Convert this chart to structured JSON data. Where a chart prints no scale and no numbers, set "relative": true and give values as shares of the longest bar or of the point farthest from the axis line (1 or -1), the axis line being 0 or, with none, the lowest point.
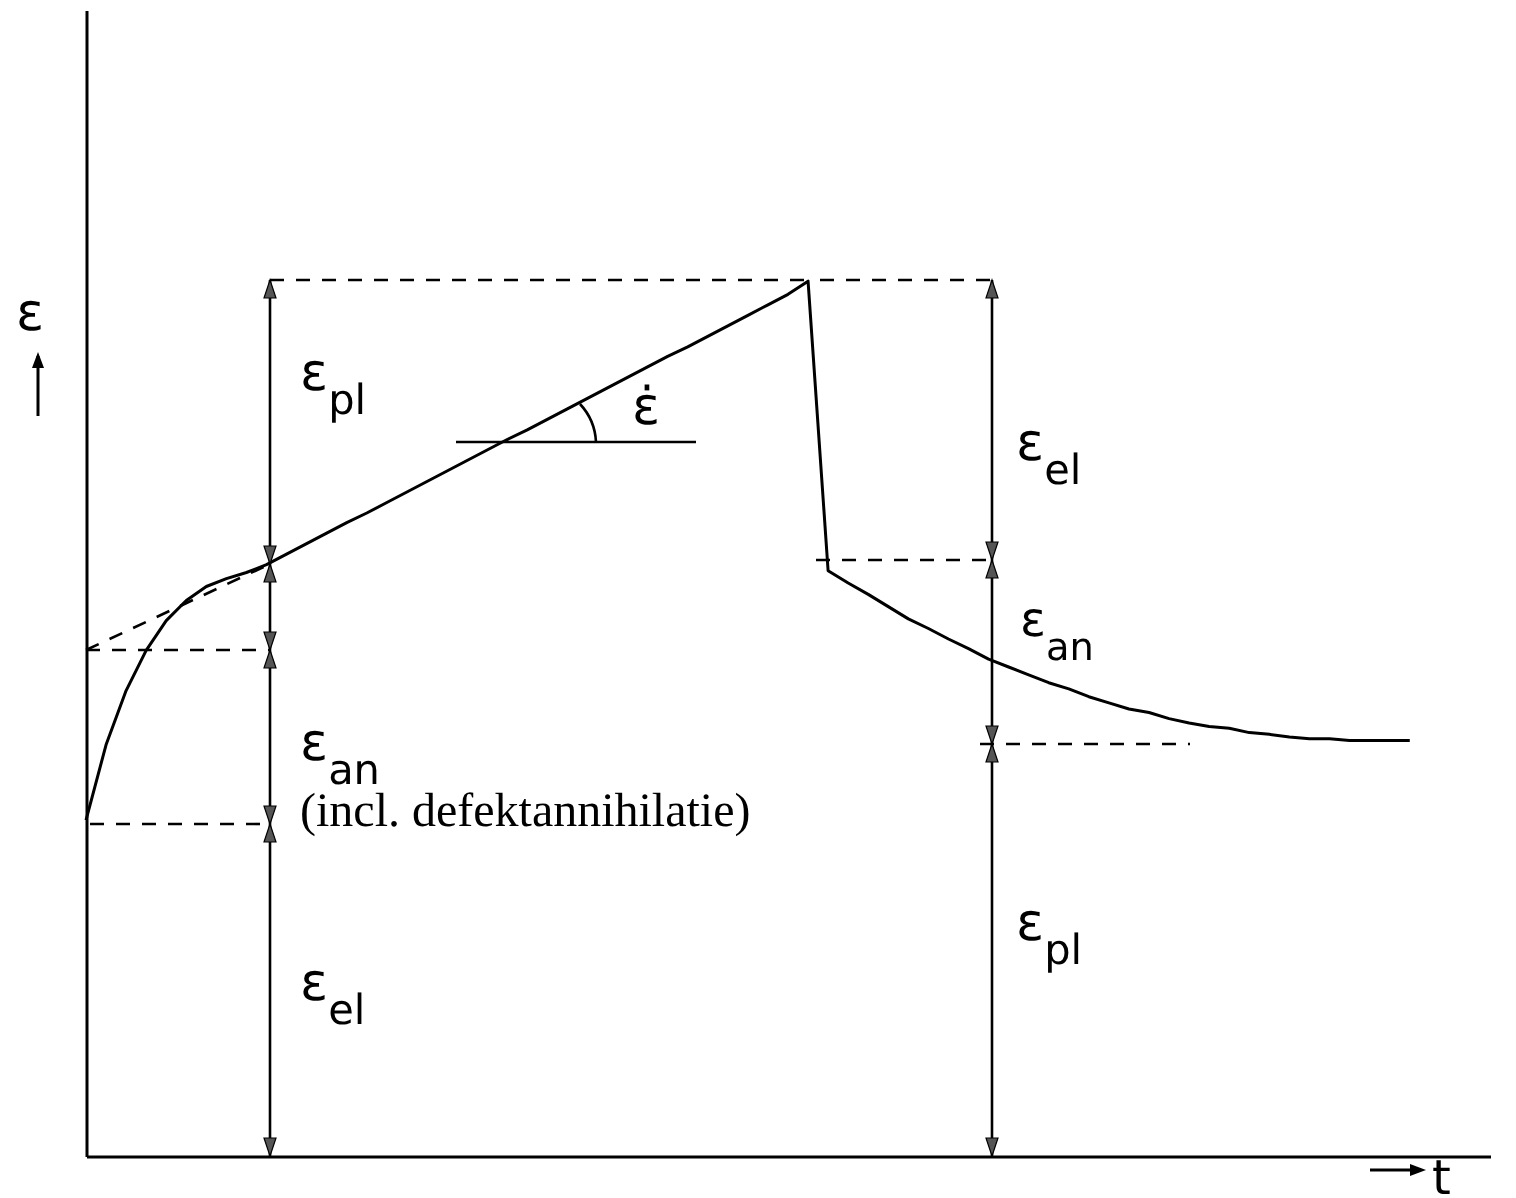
{
  "chart_data": {
    "type": "line",
    "relative": true,
    "xlabel": "t",
    "ylabel": "ε",
    "marker": "none",
    "line_style": "solid",
    "grid": false,
    "categories": [
      null,
      null,
      null,
      null,
      null,
      null,
      null,
      null,
      null,
      null,
      null,
      null,
      null,
      null,
      null,
      null,
      null,
      null,
      null,
      null,
      null,
      null,
      null,
      null,
      null,
      null,
      null,
      null,
      null,
      null,
      null,
      null,
      null,
      null,
      null,
      null,
      null,
      null,
      null,
      null,
      null,
      null,
      null,
      null,
      null,
      null,
      null,
      null,
      null,
      null,
      null,
      null,
      null,
      null,
      null,
      null,
      null,
      null,
      null,
      null,
      null,
      null,
      null,
      null,
      null,
      null,
      null,
      null,
      null,
      null,
      null
    ],
    "series": [
      {
        "color": "#000000",
        "values": [
          0.384,
          0.47,
          0.532,
          0.578,
          0.612,
          0.635,
          0.651,
          0.66,
          0.667,
          0.676,
          0.688,
          0.7,
          0.712,
          0.724,
          0.735,
          0.747,
          0.759,
          0.771,
          0.783,
          0.795,
          0.807,
          0.819,
          0.83,
          0.842,
          0.854,
          0.866,
          0.878,
          0.89,
          0.902,
          0.914,
          0.925,
          0.937,
          0.949,
          0.961,
          0.973,
          0.985,
          1.0,
          0.669,
          0.655,
          0.642,
          0.628,
          0.614,
          0.603,
          0.591,
          0.58,
          0.568,
          0.559,
          0.55,
          0.541,
          0.534,
          0.525,
          0.518,
          0.511,
          0.507,
          0.5,
          0.495,
          0.491,
          0.489,
          0.484,
          0.482,
          0.479,
          0.477,
          0.477,
          0.475,
          0.475,
          0.475,
          0.475,
          null,
          null,
          null,
          null
        ]
      }
    ],
    "annotations": [
      "ε$_{pl}$",
      "ε$_{an}$",
      "(incl. defektannihilatie)",
      "ε$_{el}$",
      "ε$_{el}$",
      "ε$_{an}$",
      "ε$_{pl}$",
      "ε̇"
    ]
  }
}
